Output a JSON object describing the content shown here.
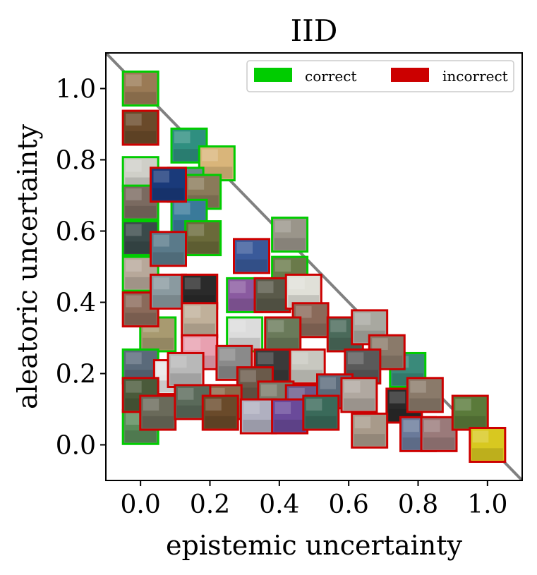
{
  "chart_data": {
    "type": "scatter",
    "title": "IID",
    "xlabel": "epistemic uncertainty",
    "ylabel": "aleatoric uncertainty",
    "xlim": [
      -0.1,
      1.1
    ],
    "ylim": [
      -0.1,
      1.1
    ],
    "xticks": [
      "0.0",
      "0.2",
      "0.4",
      "0.6",
      "0.8",
      "1.0"
    ],
    "yticks": [
      "0.0",
      "0.2",
      "0.4",
      "0.6",
      "0.8",
      "1.0"
    ],
    "grid": false,
    "legend_position": "top-right",
    "reference_line": {
      "x": [
        -0.1,
        1.1
      ],
      "y": [
        1.1,
        -0.1
      ],
      "color": "#808080"
    },
    "series": [
      {
        "name": "correct",
        "color": "#00cc00",
        "points": [
          {
            "x": 0.0,
            "y": 1.0,
            "tint": "#9a7a55"
          },
          {
            "x": 0.14,
            "y": 0.84,
            "tint": "#2f8f80"
          },
          {
            "x": 0.22,
            "y": 0.79,
            "tint": "#d9b57a"
          },
          {
            "x": 0.0,
            "y": 0.76,
            "tint": "#cfcfc8"
          },
          {
            "x": 0.13,
            "y": 0.73,
            "tint": "#6b8a8a"
          },
          {
            "x": 0.18,
            "y": 0.71,
            "tint": "#8a7a5a"
          },
          {
            "x": 0.0,
            "y": 0.68,
            "tint": "#7a6a60"
          },
          {
            "x": 0.14,
            "y": 0.64,
            "tint": "#3a7a9a"
          },
          {
            "x": 0.18,
            "y": 0.58,
            "tint": "#6a6a3a"
          },
          {
            "x": 0.43,
            "y": 0.59,
            "tint": "#9a958a"
          },
          {
            "x": 0.0,
            "y": 0.58,
            "tint": "#3a4a4a"
          },
          {
            "x": 0.0,
            "y": 0.48,
            "tint": "#b7a89a"
          },
          {
            "x": 0.43,
            "y": 0.48,
            "tint": "#6a7a4a"
          },
          {
            "x": 0.3,
            "y": 0.42,
            "tint": "#8a5aa0"
          },
          {
            "x": 0.05,
            "y": 0.31,
            "tint": "#a89a70"
          },
          {
            "x": 0.3,
            "y": 0.31,
            "tint": "#dcdcdc"
          },
          {
            "x": 0.0,
            "y": 0.22,
            "tint": "#5a6a7a"
          },
          {
            "x": 0.0,
            "y": 0.05,
            "tint": "#5a8a5a"
          },
          {
            "x": 0.77,
            "y": 0.21,
            "tint": "#3a8a7a"
          }
        ]
      },
      {
        "name": "incorrect",
        "color": "#cc0000",
        "points": [
          {
            "x": 0.0,
            "y": 0.89,
            "tint": "#6a4a2a"
          },
          {
            "x": 0.08,
            "y": 0.73,
            "tint": "#1a3a7a"
          },
          {
            "x": 0.08,
            "y": 0.55,
            "tint": "#5a7a8a"
          },
          {
            "x": 0.0,
            "y": 0.38,
            "tint": "#8a6a5a"
          },
          {
            "x": 0.08,
            "y": 0.43,
            "tint": "#8a9aa0"
          },
          {
            "x": 0.17,
            "y": 0.43,
            "tint": "#2a2a2a"
          },
          {
            "x": 0.32,
            "y": 0.53,
            "tint": "#3a5a9a"
          },
          {
            "x": 0.38,
            "y": 0.42,
            "tint": "#5a5a4a"
          },
          {
            "x": 0.17,
            "y": 0.35,
            "tint": "#c0b09a"
          },
          {
            "x": 0.17,
            "y": 0.26,
            "tint": "#e8a0b0"
          },
          {
            "x": 0.47,
            "y": 0.43,
            "tint": "#e0e0d8"
          },
          {
            "x": 0.49,
            "y": 0.35,
            "tint": "#8a6a5a"
          },
          {
            "x": 0.41,
            "y": 0.31,
            "tint": "#6a7a5a"
          },
          {
            "x": 0.59,
            "y": 0.31,
            "tint": "#4a6a5a"
          },
          {
            "x": 0.66,
            "y": 0.33,
            "tint": "#a8a8a0"
          },
          {
            "x": 0.71,
            "y": 0.26,
            "tint": "#8a7a6a"
          },
          {
            "x": 0.48,
            "y": 0.22,
            "tint": "#c8c8c0"
          },
          {
            "x": 0.38,
            "y": 0.22,
            "tint": "#3a3a3a"
          },
          {
            "x": 0.27,
            "y": 0.23,
            "tint": "#8a8a8a"
          },
          {
            "x": 0.64,
            "y": 0.22,
            "tint": "#5a5a5a"
          },
          {
            "x": 0.09,
            "y": 0.19,
            "tint": "#e8e8e8"
          },
          {
            "x": 0.13,
            "y": 0.21,
            "tint": "#b8b8b8"
          },
          {
            "x": 0.33,
            "y": 0.17,
            "tint": "#6a5a4a"
          },
          {
            "x": 0.39,
            "y": 0.13,
            "tint": "#7a7a6a"
          },
          {
            "x": 0.24,
            "y": 0.12,
            "tint": "#8a6a4a"
          },
          {
            "x": 0.47,
            "y": 0.12,
            "tint": "#6a5a8a"
          },
          {
            "x": 0.56,
            "y": 0.15,
            "tint": "#5a6a7a"
          },
          {
            "x": 0.63,
            "y": 0.14,
            "tint": "#b0a8a0"
          },
          {
            "x": 0.76,
            "y": 0.11,
            "tint": "#2a2a2a"
          },
          {
            "x": 0.82,
            "y": 0.14,
            "tint": "#8a7a6a"
          },
          {
            "x": 0.0,
            "y": 0.14,
            "tint": "#4a5a3a"
          },
          {
            "x": 0.05,
            "y": 0.09,
            "tint": "#6a6a5a"
          },
          {
            "x": 0.15,
            "y": 0.12,
            "tint": "#5a6a5a"
          },
          {
            "x": 0.23,
            "y": 0.09,
            "tint": "#6a4a2a"
          },
          {
            "x": 0.34,
            "y": 0.08,
            "tint": "#b0b0c0"
          },
          {
            "x": 0.43,
            "y": 0.08,
            "tint": "#6a4a9a"
          },
          {
            "x": 0.52,
            "y": 0.09,
            "tint": "#3a6a5a"
          },
          {
            "x": 0.66,
            "y": 0.04,
            "tint": "#a89a8a"
          },
          {
            "x": 0.8,
            "y": 0.03,
            "tint": "#6a7a9a"
          },
          {
            "x": 0.86,
            "y": 0.03,
            "tint": "#9a7a7a"
          },
          {
            "x": 0.95,
            "y": 0.09,
            "tint": "#5a7a3a"
          },
          {
            "x": 1.0,
            "y": 0.0,
            "tint": "#d8c820"
          }
        ]
      }
    ]
  }
}
